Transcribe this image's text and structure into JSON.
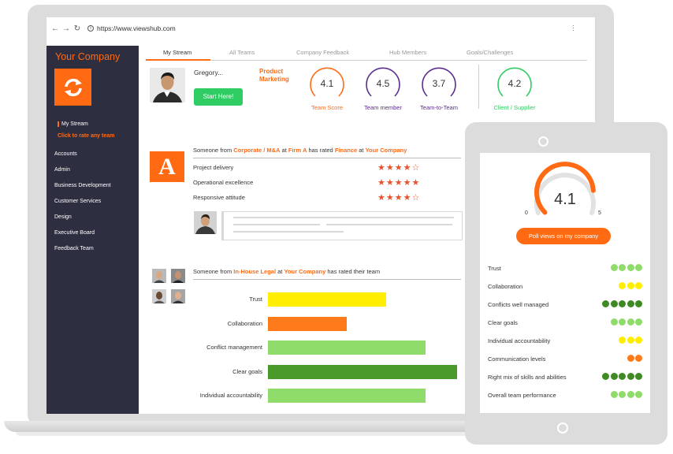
{
  "browser": {
    "url": "https://www.viewshub.com"
  },
  "sidebar": {
    "company_name": "Your Company",
    "stream_label": "My Stream",
    "rate_label": "Click to rate any team",
    "items": [
      "Accounts",
      "Admin",
      "Business Development",
      "Customer Services",
      "Design",
      "Executive Board",
      "Feedback Team"
    ]
  },
  "tabs": [
    "My Stream",
    "All Teams",
    "Company Feedback",
    "Hub Members",
    "Goals/Challenges"
  ],
  "profile": {
    "name": "Gregory...",
    "role": "Product Marketing",
    "start_label": "Start Here!"
  },
  "scores": [
    {
      "value": "4.1",
      "label": "Team Score",
      "color": "#ff6a13"
    },
    {
      "value": "4.5",
      "label": "Team member",
      "color": "#5b2d8e"
    },
    {
      "value": "3.7",
      "label": "Team-to-Team",
      "color": "#5b2d8e"
    },
    {
      "value": "4.2",
      "label": "Client / Supplier",
      "color": "#2ecc62"
    }
  ],
  "rating_card": {
    "badge_letter": "A",
    "header": {
      "p1": "Someone from ",
      "team": "Corporate / M&A",
      "p2": " at ",
      "firm": "Firm A",
      "p3": " has rated ",
      "rated": "Finance",
      "p4": " at ",
      "company": "Your Company"
    },
    "criteria": [
      {
        "label": "Project delivery",
        "stars": "★★★★☆",
        "rating": 4
      },
      {
        "label": "Operational excellence",
        "stars": "★★★★★",
        "rating": 5
      },
      {
        "label": "Responsive attitude",
        "stars": "★★★★☆",
        "rating": 4
      }
    ]
  },
  "team_card": {
    "header": {
      "p1": "Someone from ",
      "team": "In-House Legal",
      "p2": " at ",
      "company": "Your Company",
      "p3": " has rated their team"
    },
    "chart_data": {
      "type": "bar",
      "orientation": "horizontal",
      "categories": [
        "Trust",
        "Collaboration",
        "Conflict management",
        "Clear goals",
        "Individual accountability"
      ],
      "values": [
        3,
        2,
        4,
        4.8,
        4
      ],
      "colors": [
        "#ffee00",
        "#ff7a1a",
        "#8fdc6a",
        "#4a9a2a",
        "#8fdc6a"
      ],
      "xlim": [
        0,
        5
      ]
    }
  },
  "tablet": {
    "gauge": {
      "value": "4.1",
      "min": "0",
      "max": "5",
      "fraction": 0.82
    },
    "poll_label": "Poll views on my company",
    "metrics": [
      {
        "label": "Trust",
        "count": 4,
        "color": "#8fdc6a"
      },
      {
        "label": "Collaboration",
        "count": 3,
        "color": "#ffee00"
      },
      {
        "label": "Conflicts well managed",
        "count": 5,
        "color": "#3f8a22"
      },
      {
        "label": "Clear goals",
        "count": 4,
        "color": "#8fdc6a"
      },
      {
        "label": "Individual accountability",
        "count": 3,
        "color": "#ffee00"
      },
      {
        "label": "Communication levels",
        "count": 2,
        "color": "#ff7a1a"
      },
      {
        "label": "Right mix of skills and abilities",
        "count": 5,
        "color": "#3f8a22"
      },
      {
        "label": "Overall team performance",
        "count": 4,
        "color": "#8fdc6a"
      }
    ]
  }
}
